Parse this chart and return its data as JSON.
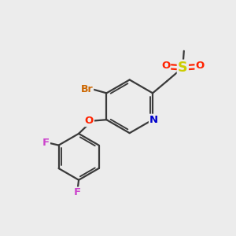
{
  "bg_color": "#ececec",
  "bond_color": "#3a3a3a",
  "bond_width": 1.6,
  "atom_colors": {
    "N": "#0000cc",
    "O": "#ff2200",
    "F": "#cc44cc",
    "Br": "#cc6600",
    "S": "#cccc00",
    "C": "#3a3a3a"
  },
  "font_size": 9.5,
  "font_size_br": 9.0
}
